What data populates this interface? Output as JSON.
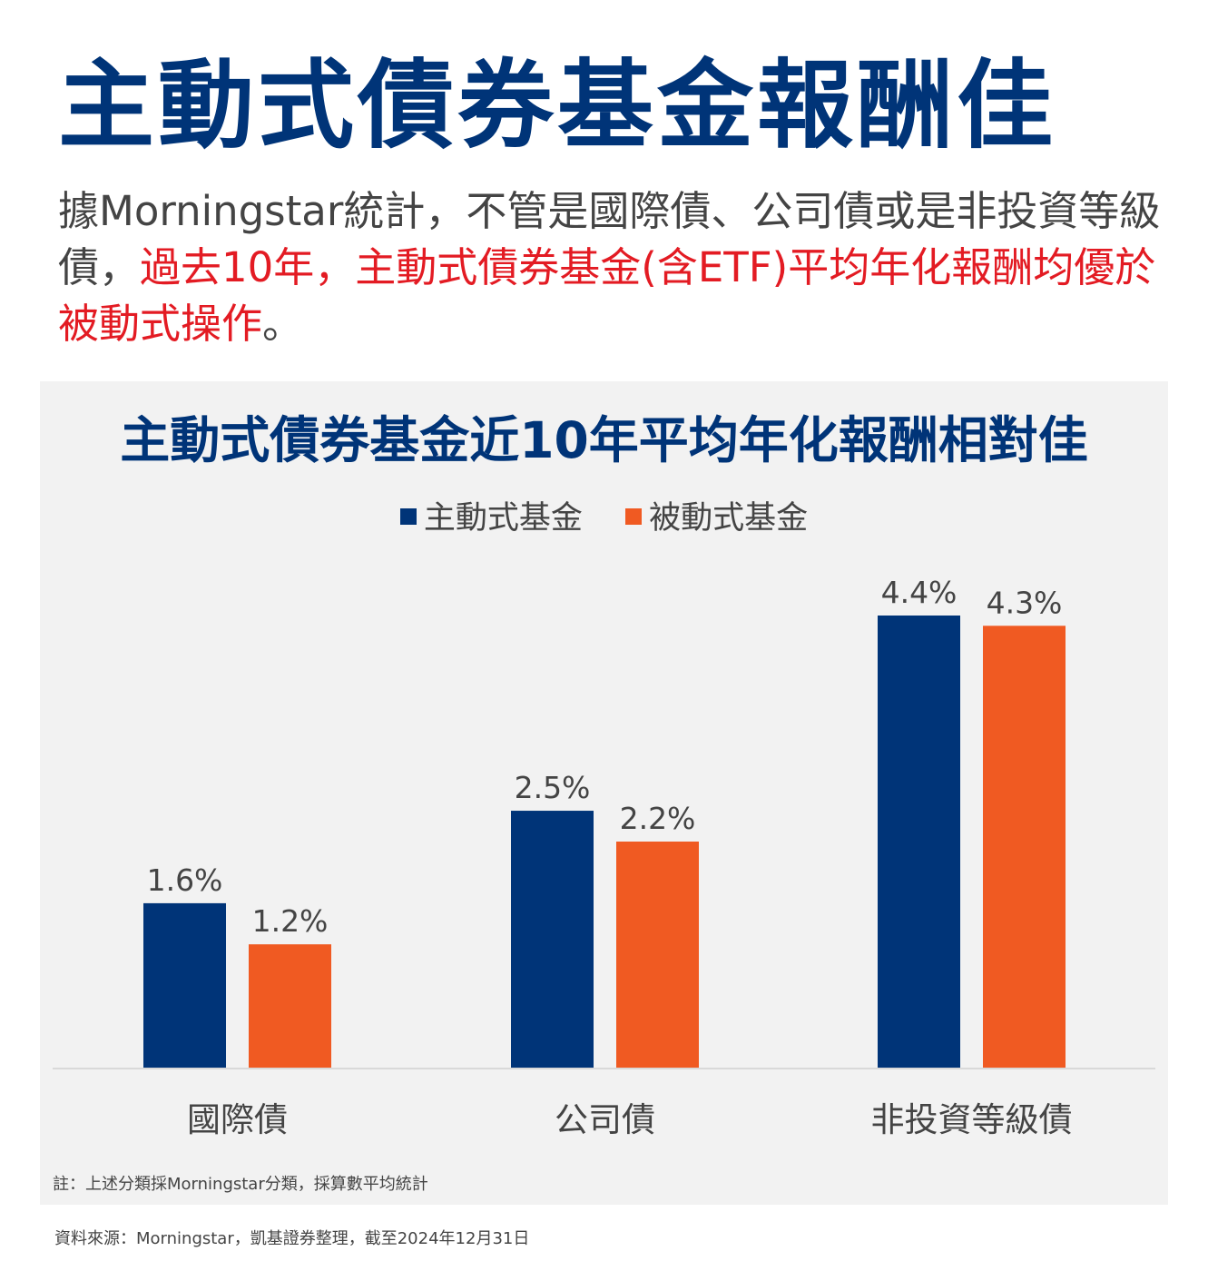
{
  "headline": "主動式債券基金報酬佳",
  "intro": {
    "lead": "據Morningstar統計，不管是國際債、公司債或是非投資等級債，",
    "highlight": "過去10年，主動式債券基金(含ETF)平均年化報酬均優於被動式操作",
    "tail": "。"
  },
  "colors": {
    "active": "#003478",
    "passive": "#f05a22",
    "title": "#003478",
    "highlight": "#e31b23",
    "panel_bg": "#f2f2f2"
  },
  "chart_data": {
    "type": "bar",
    "title": "主動式債券基金近10年平均年化報酬相對佳",
    "categories": [
      "國際債",
      "公司債",
      "非投資等級債"
    ],
    "series": [
      {
        "name": "主動式基金",
        "values": [
          1.6,
          2.5,
          4.4
        ],
        "labels": [
          "1.6%",
          "2.5%",
          "4.4%"
        ],
        "color": "#003478"
      },
      {
        "name": "被動式基金",
        "values": [
          1.2,
          2.2,
          4.3
        ],
        "labels": [
          "1.2%",
          "2.2%",
          "4.3%"
        ],
        "color": "#f05a22"
      }
    ],
    "ylim": [
      0,
      4.4
    ],
    "unit": "%",
    "grid": false,
    "legend_position": "top-center",
    "xlabel": "",
    "ylabel": ""
  },
  "footnote": "註：上述分類採Morningstar分類，採算數平均統計",
  "source": "資料來源：Morningstar，凱基證券整理，截至2024年12月31日"
}
